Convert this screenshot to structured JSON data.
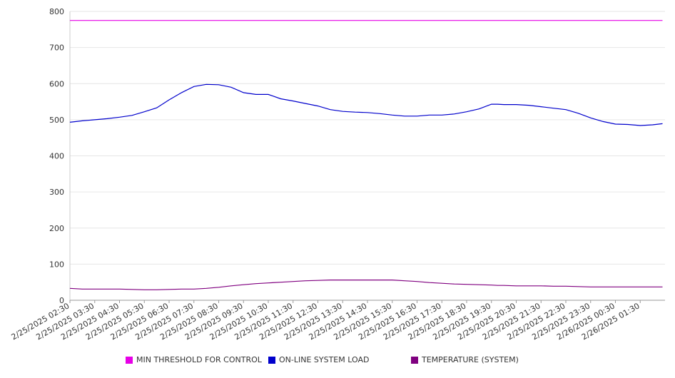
{
  "chart_data": {
    "type": "line",
    "title": "",
    "xlabel": "",
    "ylabel": "",
    "ylim": [
      0,
      800
    ],
    "yticks": [
      "0",
      "100",
      "200",
      "300",
      "400",
      "500",
      "600",
      "700",
      "800"
    ],
    "grid": "horizontal",
    "legend_position": "bottom",
    "x_tick_labels": [
      "2/25/2025 02:30",
      "2/25/2025 03:30",
      "2/25/2025 04:30",
      "2/25/2025 05:30",
      "2/25/2025 06:30",
      "2/25/2025 07:30",
      "2/25/2025 08:30",
      "2/25/2025 09:30",
      "2/25/2025 10:30",
      "2/25/2025 11:30",
      "2/25/2025 12:30",
      "2/25/2025 13:30",
      "2/25/2025 14:30",
      "2/25/2025 15:30",
      "2/25/2025 16:30",
      "2/25/2025 17:30",
      "2/25/2025 18:30",
      "2/25/2025 19:30",
      "2/25/2025 20:30",
      "2/25/2025 21:30",
      "2/25/2025 22:30",
      "2/25/2025 23:30",
      "2/26/2025 00:30",
      "2/26/2025 01:30"
    ],
    "x_hours": [
      0,
      0.5,
      1,
      1.5,
      2,
      2.5,
      3,
      3.5,
      4,
      4.5,
      5,
      5.5,
      6,
      6.5,
      7,
      7.5,
      8,
      8.5,
      9,
      9.5,
      10,
      10.5,
      11,
      11.5,
      12,
      12.5,
      13,
      13.5,
      14,
      14.5,
      15,
      15.5,
      16,
      16.5,
      17,
      17.25,
      17.5,
      18,
      18.5,
      19,
      19.5,
      20,
      20.5,
      21,
      21.5,
      22,
      22.5,
      23,
      23.5,
      23.9
    ],
    "series": [
      {
        "name": "MIN THRESHOLD FOR CONTROL",
        "color": "#e600e6",
        "values": [
          775,
          775,
          775,
          775,
          775,
          775,
          775,
          775,
          775,
          775,
          775,
          775,
          775,
          775,
          775,
          775,
          775,
          775,
          775,
          775,
          775,
          775,
          775,
          775,
          775,
          775,
          775,
          775,
          775,
          775,
          775,
          775,
          775,
          775,
          775,
          775,
          775,
          775,
          775,
          775,
          775,
          775,
          775,
          775,
          775,
          775,
          775,
          775,
          775,
          775
        ]
      },
      {
        "name": "ON-LINE SYSTEM LOAD",
        "color": "#0000cc",
        "values": [
          493,
          497,
          500,
          503,
          507,
          512,
          522,
          533,
          555,
          575,
          592,
          598,
          597,
          590,
          575,
          570,
          570,
          558,
          552,
          545,
          538,
          528,
          523,
          521,
          520,
          517,
          513,
          510,
          510,
          513,
          513,
          516,
          522,
          530,
          543,
          543,
          542,
          542,
          540,
          536,
          532,
          528,
          518,
          505,
          495,
          488,
          487,
          484,
          486,
          489
        ]
      },
      {
        "name": "TEMPERATURE (SYSTEM)",
        "color": "#800080",
        "values": [
          33,
          31,
          31,
          31,
          31,
          30,
          29,
          29,
          30,
          31,
          31,
          33,
          36,
          40,
          43,
          46,
          48,
          50,
          52,
          54,
          55,
          56,
          56,
          56,
          56,
          56,
          56,
          54,
          52,
          49,
          47,
          45,
          44,
          43,
          42,
          41,
          41,
          40,
          40,
          40,
          39,
          39,
          38,
          37,
          37,
          37,
          37,
          37,
          37,
          37
        ]
      }
    ]
  }
}
